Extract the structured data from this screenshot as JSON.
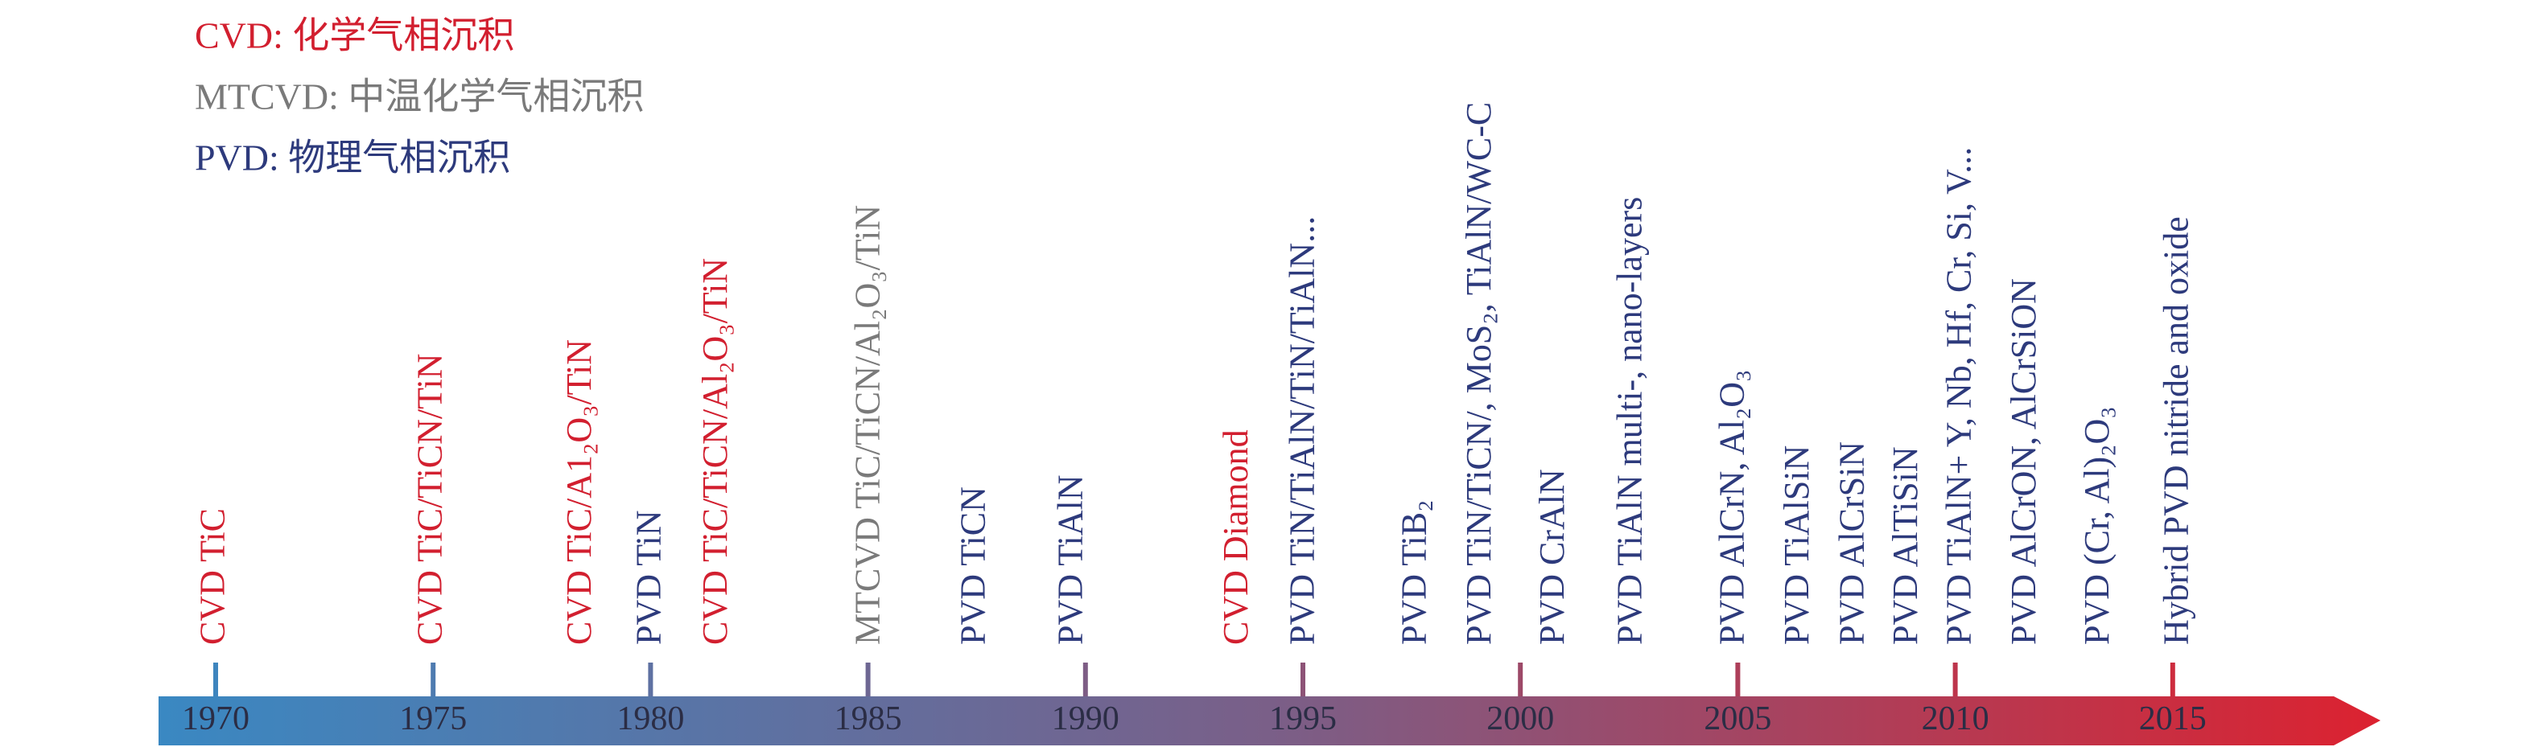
{
  "legend": [
    {
      "text": "CVD: 化学气相沉积",
      "color": "#d21f2f"
    },
    {
      "text": "MTCVD: 中温化学气相沉积",
      "color": "#7a7a7a"
    },
    {
      "text": "PVD: 物理气相沉积",
      "color": "#2d3a7c"
    }
  ],
  "timeline": {
    "years": [
      "1970",
      "1975",
      "1980",
      "1985",
      "1990",
      "1995",
      "2000",
      "2005",
      "2010",
      "2015"
    ],
    "events": [
      {
        "text": "CVD TiC",
        "color": "#d21f2f"
      },
      {
        "text": "CVD TiC/TiCN/TiN",
        "color": "#d21f2f"
      },
      {
        "text": "CVD TiC/A1₂O₃/TiN",
        "color": "#d21f2f"
      },
      {
        "text": "PVD TiN",
        "color": "#2d3a7c"
      },
      {
        "text": "CVD TiC/TiCN/Al₂O₃/TiN",
        "color": "#d21f2f"
      },
      {
        "text": "MTCVD TiC/TiCN/Al₂O₃/TiN",
        "color": "#7a7a7a"
      },
      {
        "text": "PVD TiCN",
        "color": "#2d3a7c"
      },
      {
        "text": "PVD TiAlN",
        "color": "#2d3a7c"
      },
      {
        "text": "CVD Diamond",
        "color": "#d21f2f"
      },
      {
        "text": "PVD TiN/TiAlN/TiN/TiAlN...",
        "color": "#2d3a7c"
      },
      {
        "text": "PVD TiB₂",
        "color": "#2d3a7c"
      },
      {
        "text": "PVD TiN/TiCN/, MoS₂, TiAlN/WC-C",
        "color": "#2d3a7c"
      },
      {
        "text": "PVD CrAlN",
        "color": "#2d3a7c"
      },
      {
        "text": "PVD TiAlN multi-, nano-layers",
        "color": "#2d3a7c"
      },
      {
        "text": "PVD AlCrN, Al₂O₃",
        "color": "#2d3a7c"
      },
      {
        "text": "PVD TiAlSiN",
        "color": "#2d3a7c"
      },
      {
        "text": "PVD AlCrSiN",
        "color": "#2d3a7c"
      },
      {
        "text": "PVD AlTiSiN",
        "color": "#2d3a7c"
      },
      {
        "text": "PVD TiAlN+ Y, Nb, Hf, Cr, Si, V...",
        "color": "#2d3a7c"
      },
      {
        "text": "PVD AlCrON, AlCrSiON",
        "color": "#2d3a7c"
      },
      {
        "text": "PVD (Cr, Al)₂O₃",
        "color": "#2d3a7c"
      },
      {
        "text": "Hybrid PVD nitride and oxide",
        "color": "#2d3a7c"
      }
    ]
  }
}
